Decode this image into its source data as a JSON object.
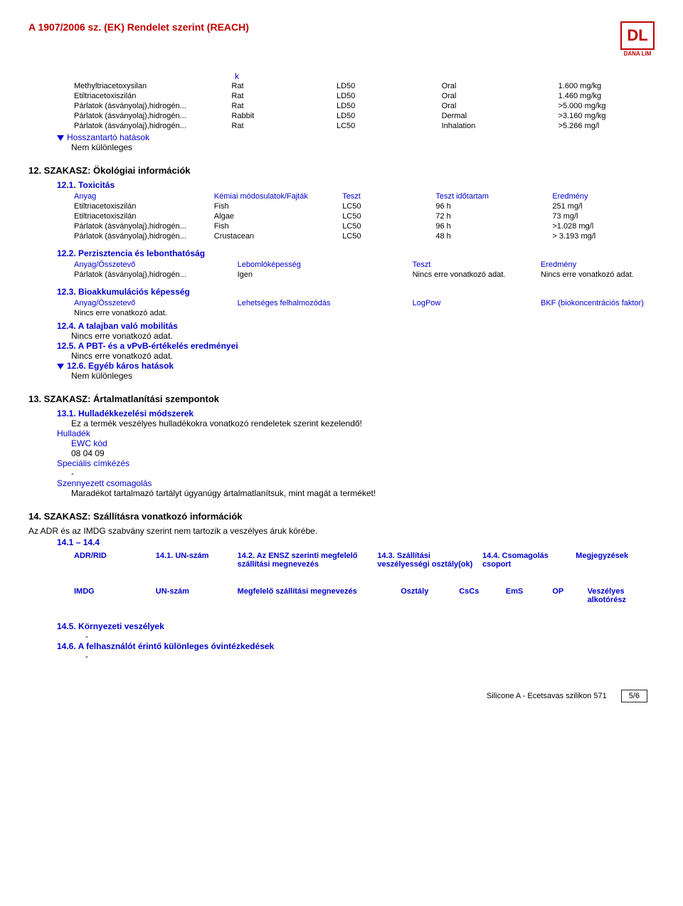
{
  "header": {
    "title": "A 1907/2006 sz. (EK) Rendelet szerint (REACH)",
    "logo_text": "DL",
    "logo_sub": "DANA LIM"
  },
  "k_header": "k",
  "tox_rows": [
    {
      "c1": "Methyltriacetoxysilan",
      "c2": "Rat",
      "c3": "LD50",
      "c4": "Oral",
      "c5": "1.600 mg/kg"
    },
    {
      "c1": "Etiltriacetoxiszilán",
      "c2": "Rat",
      "c3": "LD50",
      "c4": "Oral",
      "c5": "1.460 mg/kg"
    },
    {
      "c1": "Párlatok (ásványolaj),hidrogén...",
      "c2": "Rat",
      "c3": "LD50",
      "c4": "Oral",
      "c5": ">5.000 mg/kg"
    },
    {
      "c1": "Párlatok (ásványolaj),hidrogén...",
      "c2": "Rabbit",
      "c3": "LD50",
      "c4": "Dermal",
      "c5": ">3.160 mg/kg"
    },
    {
      "c1": "Párlatok (ásványolaj),hidrogén...",
      "c2": "Rat",
      "c3": "LC50",
      "c4": "Inhalation",
      "c5": ">5.266 mg/l"
    }
  ],
  "longterm": {
    "title": "Hosszantartó hatások",
    "text": "Nem különleges"
  },
  "s12": {
    "title": "12. SZAKASZ: Ökológiai információk"
  },
  "s12_1": {
    "title": "12.1. Toxicitás",
    "h": {
      "c1": "Anyag",
      "c2": "Kémiai módosulatok/Fajták",
      "c3": "Teszt",
      "c4": "Teszt időtartam",
      "c5": "Eredmény"
    },
    "rows": [
      {
        "c1": "Etiltriacetoxiszilán",
        "c2": "Fish",
        "c3": "LC50",
        "c4": "96 h",
        "c5": "251 mg/l"
      },
      {
        "c1": "Etiltriacetoxiszilán",
        "c2": "Algae",
        "c3": "LC50",
        "c4": "72 h",
        "c5": "73 mg/l"
      },
      {
        "c1": "Párlatok (ásványolaj),hidrogén...",
        "c2": "Fish",
        "c3": "LC50",
        "c4": "96 h",
        "c5": ">1.028 mg/l"
      },
      {
        "c1": "Párlatok (ásványolaj),hidrogén...",
        "c2": "Crustacean",
        "c3": "LC50",
        "c4": "48 h",
        "c5": "> 3.193 mg/l"
      }
    ]
  },
  "s12_2": {
    "title": "12.2. Perzisztencia és lebonthatóság",
    "h": {
      "c1": "Anyag/Összetevő",
      "c2": "Lebomlóképesség",
      "c3": "Teszt",
      "c4": "Eredmény"
    },
    "row": {
      "c1": "Párlatok (ásványolaj),hidrogén...",
      "c2": "Igen",
      "c3": "Nincs erre vonatkozó adat.",
      "c4": "Nincs erre vonatkozó adat."
    }
  },
  "s12_3": {
    "title": "12.3. Bioakkumulációs képesség",
    "h": {
      "c1": "Anyag/Összetevő",
      "c2": "Lehetséges felhalmozódás",
      "c3": "LogPow",
      "c4": "BKF (biokoncentrációs faktor)"
    },
    "row": {
      "c1": "Nincs erre vonatkozó adat."
    }
  },
  "s12_4": {
    "title": "12.4. A talajban való mobilitás",
    "text": "Nincs erre vonatkozó adat."
  },
  "s12_5": {
    "title": "12.5. A PBT- és a vPvB-értékelés eredményei",
    "text": "Nincs erre vonatkozó adat."
  },
  "s12_6": {
    "title": "12.6. Egyéb káros hatások",
    "text": "Nem különleges"
  },
  "s13": {
    "title": "13. SZAKASZ: Ártalmatlanítási szempontok",
    "s13_1": "13.1. Hulladékkezelési módszerek",
    "s13_1_text": "Ez a termék veszélyes hulladékokra vonatkozó rendeletek szerint kezelendő!",
    "waste": "Hulladék",
    "ewc": "EWC kód",
    "ewc_code": "08 04 09",
    "special": "Speciális címkézés",
    "special_text": "-",
    "contaminated": "Szennyezett csomagolás",
    "contaminated_text": "Maradékot tartalmazó tartályt úgyanúgy ártalmatlanítsuk, mint magát a terméket!"
  },
  "s14": {
    "title": "14. SZAKASZ: Szállításra vonatkozó információk",
    "intro": "Az ADR és az IMDG szabvány szerint nem tartozik a veszélyes áruk körébe.",
    "range": "14.1 – 14.4",
    "adr": {
      "c1": "ADR/RID",
      "c2": "14.1. UN-szám",
      "c3": "14.2. Az ENSZ szerinti megfelelő szállítási megnevezés",
      "c4": "14.3. Szállítási veszélyességi osztály(ok)",
      "c5": "14.4. Csomagolás csoport",
      "c6": "Megjegyzések"
    },
    "imdg": {
      "c1": "IMDG",
      "c2": "UN-szám",
      "c3": "Megfelelő szállítási megnevezés",
      "c4": "Osztály",
      "c5": "CsCs",
      "c6": "EmS",
      "c7": "OP",
      "c8": "Veszélyes alkotórész"
    },
    "s14_5": "14.5. Környezeti veszélyek",
    "s14_5_text": "-",
    "s14_6": "14.6. A felhasználót érintő különleges óvintézkedések",
    "s14_6_text": "-"
  },
  "footer": {
    "product": "Silicone A - Ecetsavas szilikon 571",
    "page": "5/6"
  }
}
